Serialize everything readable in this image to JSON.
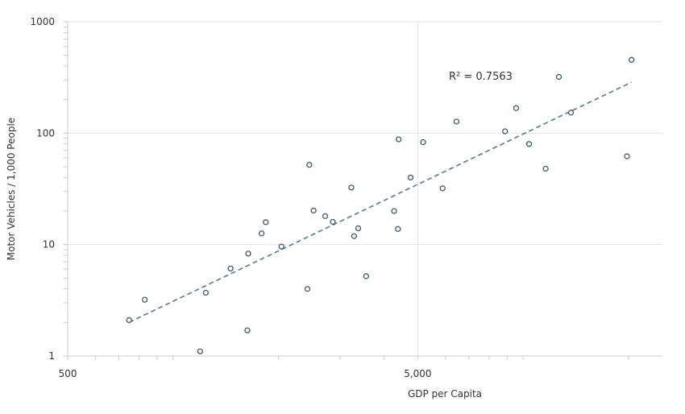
{
  "chart_data": {
    "type": "scatter",
    "title": "",
    "xlabel": "GDP per Capita",
    "ylabel": "Motor Vehicles / 1,000 People",
    "x_scale": "log",
    "y_scale": "log",
    "xlim": [
      500,
      25000
    ],
    "ylim": [
      1,
      1000
    ],
    "x_ticks": [
      {
        "value": 500,
        "label": "500"
      },
      {
        "value": 5000,
        "label": "5,000"
      }
    ],
    "y_ticks": [
      {
        "value": 1,
        "label": "1"
      },
      {
        "value": 10,
        "label": "10"
      },
      {
        "value": 100,
        "label": "100"
      },
      {
        "value": 1000,
        "label": "1000"
      }
    ],
    "grid": true,
    "marker_color": "#3f5870",
    "trend_color": "#5a7890",
    "points": [
      [
        749,
        2.1
      ],
      [
        830,
        3.2
      ],
      [
        1195,
        1.1
      ],
      [
        1240,
        3.7
      ],
      [
        1460,
        6.1
      ],
      [
        1630,
        1.7
      ],
      [
        1640,
        8.3
      ],
      [
        1790,
        12.6
      ],
      [
        1840,
        15.9
      ],
      [
        2040,
        9.6
      ],
      [
        2420,
        4.0
      ],
      [
        2450,
        52
      ],
      [
        2520,
        20.2
      ],
      [
        2720,
        18.0
      ],
      [
        2860,
        16.0
      ],
      [
        3230,
        32.5
      ],
      [
        3290,
        11.9
      ],
      [
        3380,
        14.0
      ],
      [
        3560,
        5.2
      ],
      [
        4280,
        20.0
      ],
      [
        4390,
        13.8
      ],
      [
        4410,
        88
      ],
      [
        4770,
        40
      ],
      [
        5180,
        83
      ],
      [
        5890,
        32
      ],
      [
        6450,
        127
      ],
      [
        8880,
        104
      ],
      [
        9550,
        168
      ],
      [
        10400,
        80
      ],
      [
        11600,
        48
      ],
      [
        12650,
        320
      ],
      [
        13700,
        153
      ],
      [
        19800,
        62
      ],
      [
        20400,
        455
      ]
    ],
    "trendline": {
      "type": "power",
      "x_range": [
        749,
        20400
      ],
      "r_squared_label": "R² = 0.7563"
    }
  }
}
